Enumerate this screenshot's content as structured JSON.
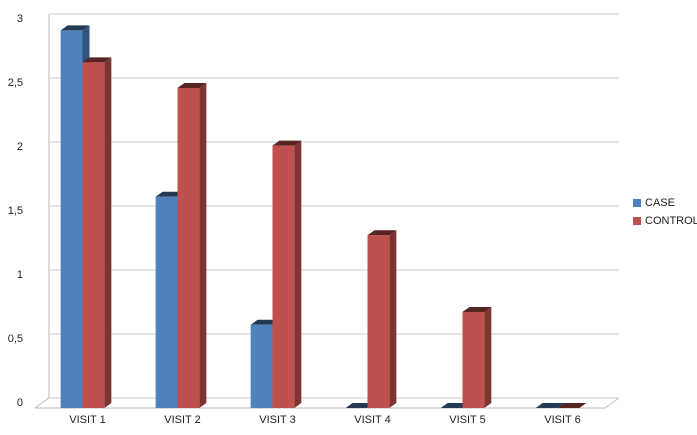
{
  "chart_data": {
    "type": "bar3d",
    "categories": [
      "VISIT 1",
      "VISIT 2",
      "VISIT 3",
      "VISIT 4",
      "VISIT 5",
      "VISIT 6"
    ],
    "series": [
      {
        "name": "CASE",
        "color": "#4f81bd",
        "values": [
          2.95,
          1.65,
          0.65,
          0,
          0,
          0
        ]
      },
      {
        "name": "CONTROL",
        "color": "#c0504d",
        "values": [
          2.7,
          2.5,
          2.05,
          1.35,
          0.75,
          0
        ]
      }
    ],
    "ylim": [
      0,
      3
    ],
    "yticks": [
      0,
      {
        "value": 0.5,
        "label": "0,5"
      },
      1,
      {
        "value": 1.5,
        "label": "1,5"
      },
      2,
      {
        "value": 2.5,
        "label": "2,5"
      },
      3
    ],
    "grid": true,
    "legend": "right"
  }
}
